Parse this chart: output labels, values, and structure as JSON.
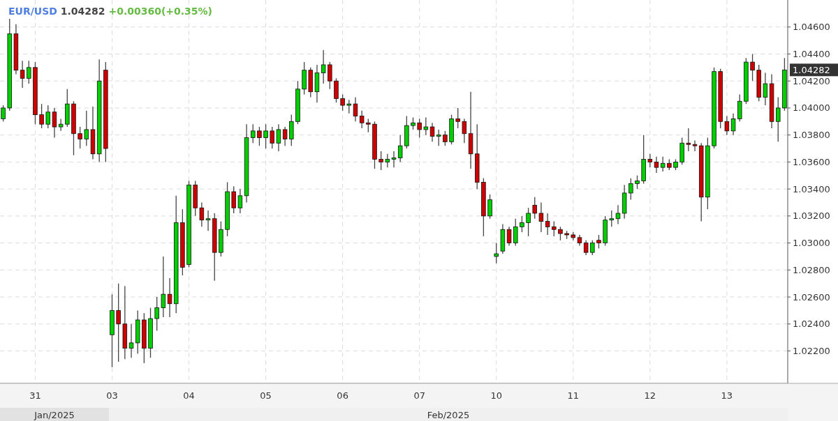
{
  "chart_data": {
    "type": "candlestick",
    "title": "EUR/USD 1.04282",
    "subtitle": "+0.00360(+0.35%)",
    "categories": [
      null,
      null,
      null,
      null,
      null,
      "31",
      null,
      null,
      null,
      null,
      null,
      null,
      null,
      null,
      null,
      null,
      null,
      "03",
      null,
      null,
      null,
      null,
      null,
      null,
      null,
      null,
      null,
      null,
      null,
      "04",
      null,
      null,
      null,
      null,
      null,
      null,
      null,
      null,
      null,
      null,
      null,
      "05",
      null,
      null,
      null,
      null,
      null,
      null,
      null,
      null,
      null,
      null,
      null,
      "06",
      null,
      null,
      null,
      null,
      null,
      null,
      null,
      null,
      null,
      null,
      null,
      "07",
      null,
      null,
      null,
      null,
      null,
      null,
      null,
      null,
      null,
      null,
      null,
      "10",
      null,
      null,
      null,
      null,
      null,
      null,
      null,
      null,
      null,
      null,
      null,
      "11",
      null,
      null,
      null,
      null,
      null,
      null,
      null,
      null,
      null,
      null,
      null,
      "12",
      null,
      null,
      null,
      null,
      null,
      null,
      null,
      null,
      null,
      null,
      null,
      "13",
      null,
      null,
      null,
      null,
      null,
      null,
      null,
      null,
      null
    ],
    "ohlc": [
      [
        1.0392,
        1.0402,
        1.039,
        1.04
      ],
      [
        1.04,
        1.0466,
        1.0398,
        1.0455
      ],
      [
        1.0455,
        1.0462,
        1.0425,
        1.0428
      ],
      [
        1.0428,
        1.0435,
        1.0415,
        1.0422
      ],
      [
        1.0422,
        1.0435,
        1.0418,
        1.043
      ],
      [
        1.043,
        1.0434,
        1.0388,
        1.0395
      ],
      [
        1.0395,
        1.0403,
        1.0385,
        1.0388
      ],
      [
        1.0388,
        1.0402,
        1.0385,
        1.0397
      ],
      [
        1.0397,
        1.04,
        1.0378,
        1.0386
      ],
      [
        1.0386,
        1.0392,
        1.0383,
        1.0388
      ],
      [
        1.0388,
        1.0414,
        1.0386,
        1.0403
      ],
      [
        1.0403,
        1.0405,
        1.0365,
        1.0381
      ],
      [
        1.0381,
        1.0386,
        1.037,
        1.0377
      ],
      [
        1.0377,
        1.0398,
        1.0372,
        1.0384
      ],
      [
        1.0384,
        1.0401,
        1.0362,
        1.0366
      ],
      [
        1.0366,
        1.0436,
        1.036,
        1.042
      ],
      [
        1.0428,
        1.0434,
        1.036,
        1.037
      ],
      [
        1.0232,
        1.0262,
        1.0208,
        1.025
      ],
      [
        1.025,
        1.027,
        1.0212,
        1.024
      ],
      [
        1.024,
        1.0268,
        1.0214,
        1.0222
      ],
      [
        1.0222,
        1.024,
        1.0215,
        1.0226
      ],
      [
        1.0226,
        1.025,
        1.0218,
        1.0243
      ],
      [
        1.0243,
        1.0248,
        1.0211,
        1.0222
      ],
      [
        1.0222,
        1.0252,
        1.0215,
        1.0244
      ],
      [
        1.0244,
        1.026,
        1.0235,
        1.0252
      ],
      [
        1.0252,
        1.029,
        1.0245,
        1.0262
      ],
      [
        1.0262,
        1.0274,
        1.0245,
        1.0255
      ],
      [
        1.0255,
        1.0335,
        1.0248,
        1.0315
      ],
      [
        1.0315,
        1.0325,
        1.0276,
        1.0282
      ],
      [
        1.0284,
        1.0346,
        1.0282,
        1.0343
      ],
      [
        1.0343,
        1.0346,
        1.032,
        1.0326
      ],
      [
        1.0326,
        1.033,
        1.0312,
        1.0317
      ],
      [
        1.0317,
        1.0324,
        1.0309,
        1.0318
      ],
      [
        1.0318,
        1.0322,
        1.0272,
        1.0293
      ],
      [
        1.0293,
        1.0316,
        1.029,
        1.031
      ],
      [
        1.031,
        1.0345,
        1.0305,
        1.0338
      ],
      [
        1.0338,
        1.0342,
        1.0322,
        1.0326
      ],
      [
        1.0326,
        1.034,
        1.0322,
        1.0335
      ],
      [
        1.0335,
        1.0388,
        1.033,
        1.0378
      ],
      [
        1.0378,
        1.0388,
        1.0374,
        1.0383
      ],
      [
        1.0383,
        1.0386,
        1.0372,
        1.0378
      ],
      [
        1.0378,
        1.0388,
        1.037,
        1.0383
      ],
      [
        1.0383,
        1.0386,
        1.037,
        1.0374
      ],
      [
        1.0374,
        1.0388,
        1.0368,
        1.0384
      ],
      [
        1.0384,
        1.0386,
        1.0372,
        1.0377
      ],
      [
        1.0377,
        1.0395,
        1.0372,
        1.039
      ],
      [
        1.039,
        1.042,
        1.0388,
        1.0414
      ],
      [
        1.0414,
        1.0434,
        1.041,
        1.0428
      ],
      [
        1.0428,
        1.043,
        1.0408,
        1.0412
      ],
      [
        1.0412,
        1.0432,
        1.0404,
        1.0426
      ],
      [
        1.0426,
        1.0443,
        1.0418,
        1.0432
      ],
      [
        1.0432,
        1.0434,
        1.0414,
        1.042
      ],
      [
        1.042,
        1.0422,
        1.0404,
        1.0407
      ],
      [
        1.0407,
        1.041,
        1.0398,
        1.0402
      ],
      [
        1.0402,
        1.0406,
        1.0396,
        1.0403
      ],
      [
        1.0403,
        1.0408,
        1.039,
        1.0394
      ],
      [
        1.0394,
        1.0398,
        1.0385,
        1.0389
      ],
      [
        1.0389,
        1.0392,
        1.0382,
        1.0388
      ],
      [
        1.0388,
        1.039,
        1.0355,
        1.0362
      ],
      [
        1.0362,
        1.0368,
        1.0354,
        1.036
      ],
      [
        1.036,
        1.0366,
        1.0356,
        1.0362
      ],
      [
        1.0362,
        1.0368,
        1.0356,
        1.0363
      ],
      [
        1.0363,
        1.038,
        1.036,
        1.0372
      ],
      [
        1.0372,
        1.0394,
        1.037,
        1.0387
      ],
      [
        1.0387,
        1.0393,
        1.0384,
        1.0389
      ],
      [
        1.0389,
        1.0392,
        1.0378,
        1.0384
      ],
      [
        1.0384,
        1.0393,
        1.038,
        1.0386
      ],
      [
        1.0386,
        1.0389,
        1.0375,
        1.0379
      ],
      [
        1.0379,
        1.0384,
        1.0372,
        1.038
      ],
      [
        1.038,
        1.0383,
        1.0372,
        1.0375
      ],
      [
        1.0375,
        1.0395,
        1.0373,
        1.0392
      ],
      [
        1.0392,
        1.04,
        1.0385,
        1.039
      ],
      [
        1.039,
        1.0392,
        1.0374,
        1.0381
      ],
      [
        1.0381,
        1.0412,
        1.0355,
        1.0366
      ],
      [
        1.0366,
        1.0388,
        1.034,
        1.0345
      ],
      [
        1.0345,
        1.0348,
        1.0305,
        1.032
      ],
      [
        1.032,
        1.0336,
        1.0318,
        1.0332
      ],
      [
        1.029,
        1.03,
        1.0285,
        1.0292
      ],
      [
        1.0294,
        1.0314,
        1.0292,
        1.031
      ],
      [
        1.031,
        1.0312,
        1.0298,
        1.03
      ],
      [
        1.03,
        1.0318,
        1.0298,
        1.0312
      ],
      [
        1.0312,
        1.032,
        1.0308,
        1.0315
      ],
      [
        1.0315,
        1.0326,
        1.0305,
        1.0322
      ],
      [
        1.0328,
        1.0334,
        1.0318,
        1.0322
      ],
      [
        1.0322,
        1.033,
        1.0308,
        1.0316
      ],
      [
        1.0316,
        1.0322,
        1.0306,
        1.0312
      ],
      [
        1.0312,
        1.0316,
        1.0305,
        1.031
      ],
      [
        1.031,
        1.0312,
        1.0302,
        1.0307
      ],
      [
        1.0307,
        1.0309,
        1.0303,
        1.0306
      ],
      [
        1.0306,
        1.0308,
        1.0302,
        1.0304
      ],
      [
        1.0304,
        1.0306,
        1.0298,
        1.03
      ],
      [
        1.03,
        1.0302,
        1.0291,
        1.0293
      ],
      [
        1.0293,
        1.0302,
        1.0291,
        1.03
      ],
      [
        1.0302,
        1.0306,
        1.0296,
        1.03
      ],
      [
        1.03,
        1.032,
        1.0298,
        1.0317
      ],
      [
        1.0317,
        1.0324,
        1.0312,
        1.0318
      ],
      [
        1.0318,
        1.0328,
        1.0314,
        1.0322
      ],
      [
        1.0322,
        1.0343,
        1.0318,
        1.0337
      ],
      [
        1.0337,
        1.0348,
        1.0332,
        1.0344
      ],
      [
        1.0344,
        1.035,
        1.034,
        1.0346
      ],
      [
        1.0346,
        1.038,
        1.0344,
        1.0362
      ],
      [
        1.0362,
        1.0366,
        1.0356,
        1.036
      ],
      [
        1.036,
        1.0364,
        1.0352,
        1.0356
      ],
      [
        1.0356,
        1.0364,
        1.0353,
        1.0359
      ],
      [
        1.0359,
        1.0362,
        1.0354,
        1.0356
      ],
      [
        1.0356,
        1.0362,
        1.0354,
        1.036
      ],
      [
        1.036,
        1.0378,
        1.0358,
        1.0374
      ],
      [
        1.0374,
        1.0385,
        1.0368,
        1.0373
      ],
      [
        1.0373,
        1.0376,
        1.0368,
        1.0372
      ],
      [
        1.0372,
        1.0374,
        1.0316,
        1.0334
      ],
      [
        1.0334,
        1.0378,
        1.0325,
        1.0372
      ],
      [
        1.0372,
        1.043,
        1.037,
        1.0427
      ],
      [
        1.0427,
        1.0429,
        1.0385,
        1.039
      ],
      [
        1.039,
        1.0394,
        1.038,
        1.0383
      ],
      [
        1.0383,
        1.0396,
        1.038,
        1.0392
      ],
      [
        1.0392,
        1.041,
        1.039,
        1.0405
      ],
      [
        1.0405,
        1.0437,
        1.0403,
        1.0434
      ],
      [
        1.0434,
        1.044,
        1.042,
        1.0428
      ],
      [
        1.0428,
        1.0432,
        1.0405,
        1.0408
      ],
      [
        1.0408,
        1.0426,
        1.0402,
        1.0418
      ],
      [
        1.0418,
        1.0425,
        1.0385,
        1.039
      ],
      [
        1.039,
        1.0408,
        1.0375,
        1.04
      ],
      [
        1.04,
        1.0437,
        1.0398,
        1.04282
      ]
    ],
    "ylim": [
      1.0196,
      1.048
    ],
    "yticks": [
      {
        "value": 1.022,
        "label": "1.02200"
      },
      {
        "value": 1.024,
        "label": "1.02400"
      },
      {
        "value": 1.026,
        "label": "1.02600"
      },
      {
        "value": 1.028,
        "label": "1.02800"
      },
      {
        "value": 1.03,
        "label": "1.03000"
      },
      {
        "value": 1.032,
        "label": "1.03200"
      },
      {
        "value": 1.034,
        "label": "1.03400"
      },
      {
        "value": 1.036,
        "label": "1.03600"
      },
      {
        "value": 1.038,
        "label": "1.03800"
      },
      {
        "value": 1.04,
        "label": "1.04000"
      },
      {
        "value": 1.042,
        "label": "1.04200"
      },
      {
        "value": 1.044,
        "label": "1.04400"
      },
      {
        "value": 1.046,
        "label": "1.04600"
      }
    ],
    "grid": true,
    "annotations": [
      "Jan/2025",
      "Feb/2025",
      "1.04282"
    ]
  }
}
